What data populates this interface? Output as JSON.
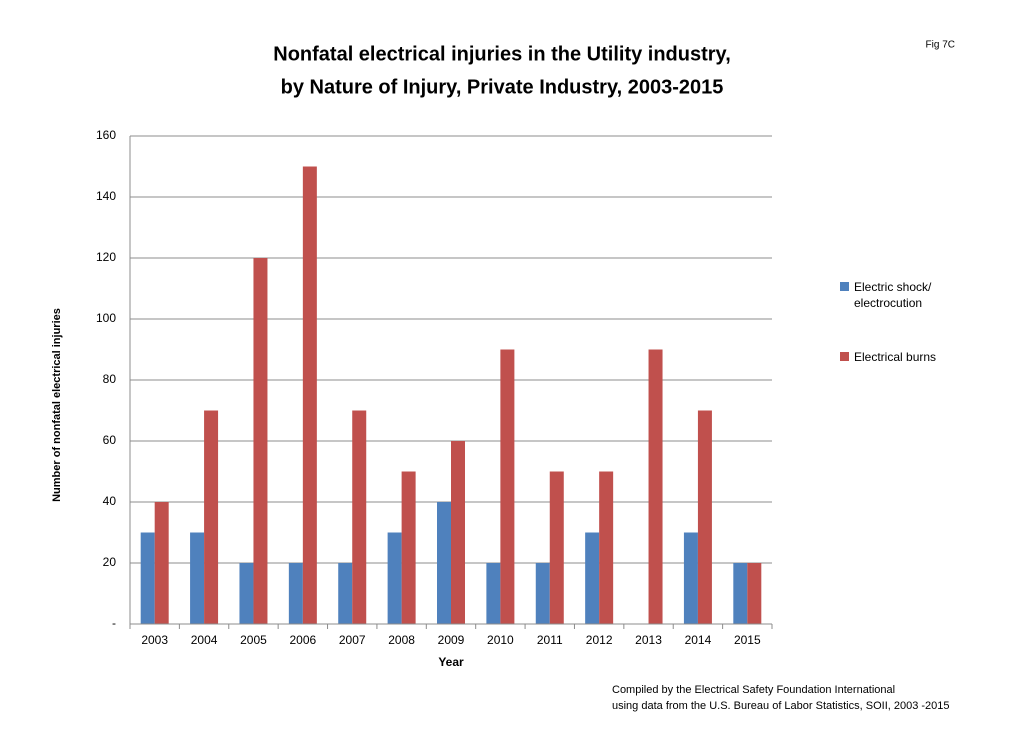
{
  "chart_data": {
    "type": "bar",
    "title": [
      "Nonfatal electrical injuries in the Utility industry,",
      "by Nature of Injury, Private Industry, 2003-2015"
    ],
    "figure_label": "Fig 7C",
    "x_label": "Year",
    "y_label": "Number of nonfatal electrical injuries",
    "categories": [
      "2003",
      "2004",
      "2005",
      "2006",
      "2007",
      "2008",
      "2009",
      "2010",
      "2011",
      "2012",
      "2013",
      "2014",
      "2015"
    ],
    "series": [
      {
        "name": "Electric shock/ electrocution",
        "color": "#4f81bd",
        "values": [
          30,
          30,
          20,
          20,
          20,
          30,
          40,
          20,
          20,
          30,
          null,
          30,
          20
        ]
      },
      {
        "name": "Electrical burns",
        "color": "#c0504d",
        "values": [
          40,
          70,
          120,
          150,
          70,
          50,
          60,
          90,
          50,
          50,
          90,
          70,
          20
        ]
      }
    ],
    "ylim": [
      0,
      160
    ],
    "yticks": [
      {
        "value": 0,
        "label": "-"
      },
      20,
      40,
      60,
      80,
      100,
      120,
      140,
      160
    ],
    "grid": true,
    "legend": "right",
    "source": [
      "Compiled by the Electrical Safety Foundation International",
      "using data from the U.S. Bureau of Labor Statistics, SOII, 2003 -2015"
    ]
  }
}
